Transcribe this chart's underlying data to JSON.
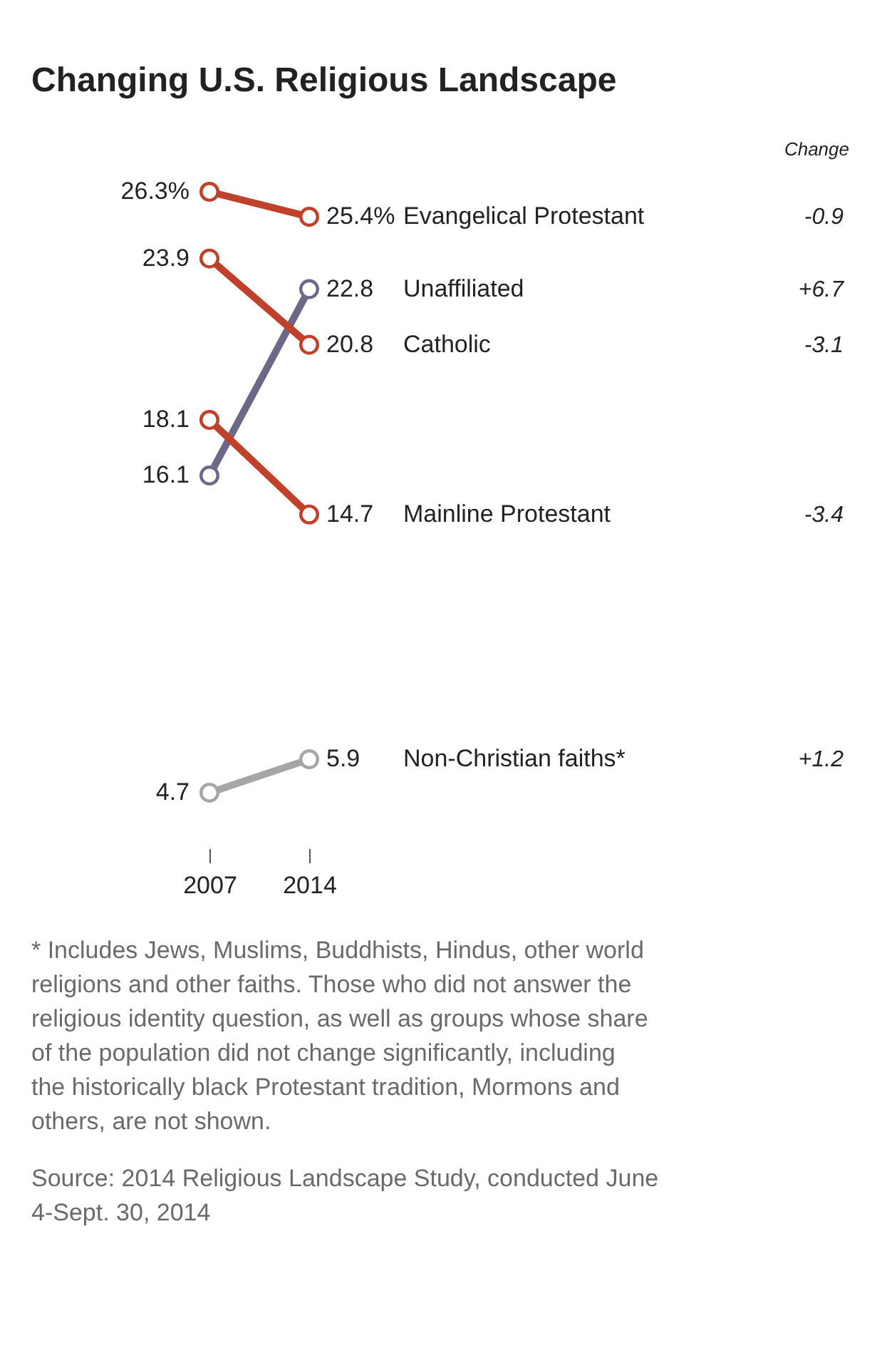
{
  "chart_data": {
    "type": "line",
    "title": "Changing U.S. Religious Landscape",
    "categories": [
      "2007",
      "2014"
    ],
    "series": [
      {
        "name": "Evangelical Protestant",
        "color": "#c0412a",
        "values": [
          26.3,
          25.4
        ],
        "value_labels": [
          "26.3%",
          "25.4%"
        ]
      },
      {
        "name": "Unaffiliated",
        "color": "#6e6888",
        "values": [
          16.1,
          22.8
        ],
        "value_labels": [
          "16.1",
          "22.8"
        ]
      },
      {
        "name": "Catholic",
        "color": "#c0412a",
        "values": [
          23.9,
          20.8
        ],
        "value_labels": [
          "23.9",
          "20.8"
        ]
      },
      {
        "name": "Mainline Protestant",
        "color": "#c0412a",
        "values": [
          18.1,
          14.7
        ],
        "value_labels": [
          "18.1",
          "14.7"
        ]
      },
      {
        "name": "Non-Christian faiths*",
        "color": "#a6a6a6",
        "values": [
          4.7,
          5.9
        ],
        "value_labels": [
          "4.7",
          "5.9"
        ]
      }
    ],
    "annotations": [
      "Change",
      "-0.9",
      "+6.7",
      "-3.1",
      "-3.4",
      "+1.2",
      "* Includes Jews, Muslims, Buddhists, Hindus, other world religions and other faiths. Those who did not answer the religious identity question, as well as groups whose share of the population did not change significantly, including the historically black Protestant tradition, Mormons and others, are not shown.",
      "Source: 2014 Religious Landscape Study, conducted June 4-Sept. 30, 2014"
    ],
    "marker": "circle",
    "legend": false,
    "grid": false
  }
}
